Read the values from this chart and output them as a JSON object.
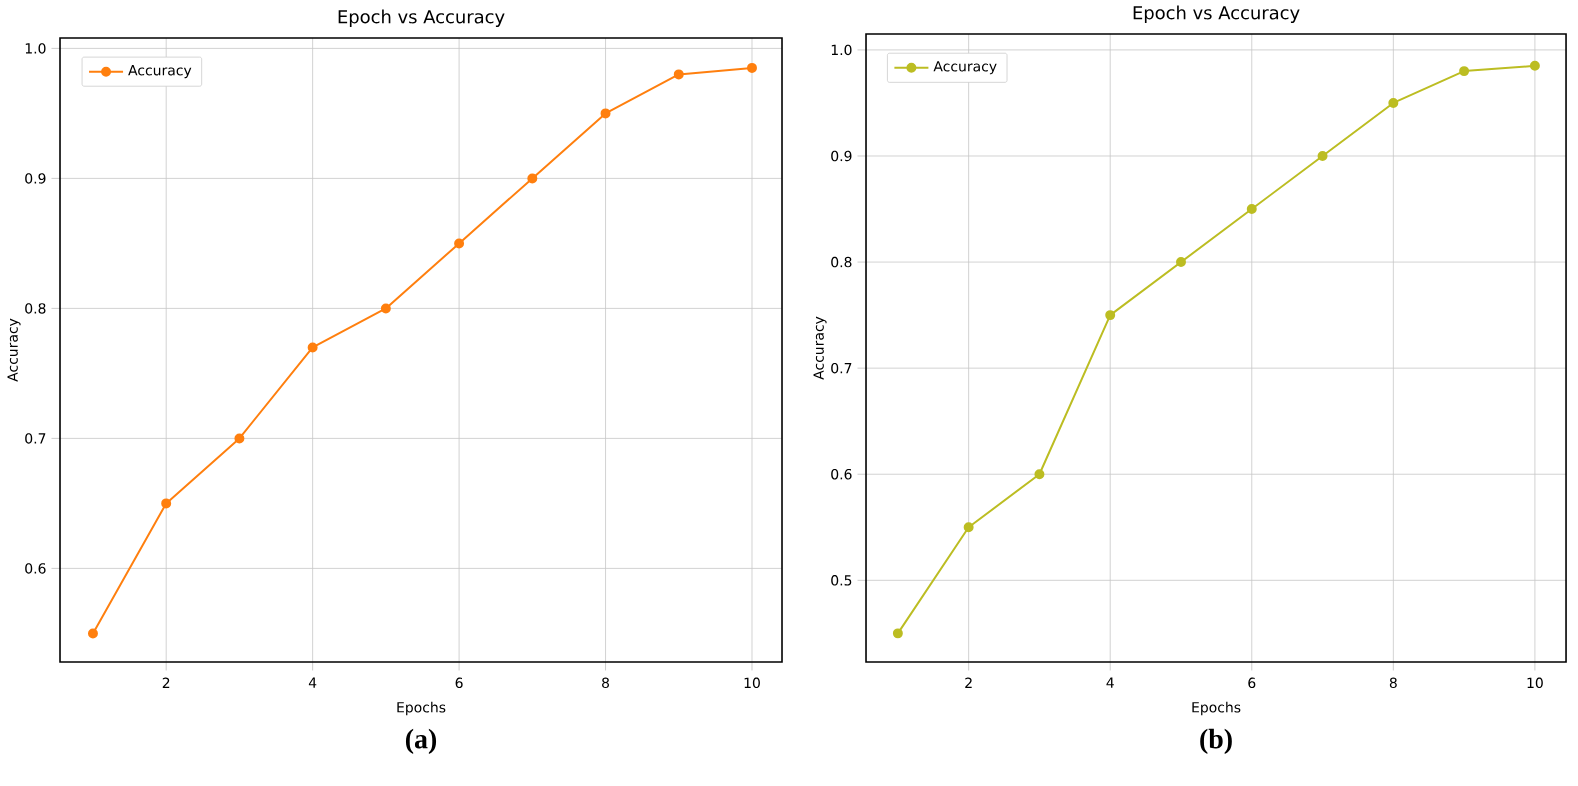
{
  "chart_data": [
    {
      "type": "line",
      "title": "Epoch vs Accuracy",
      "xlabel": "Epochs",
      "ylabel": "Accuracy",
      "x": [
        1,
        2,
        3,
        4,
        5,
        6,
        7,
        8,
        9,
        10
      ],
      "series": [
        {
          "name": "Accuracy",
          "color": "#ff7f0e",
          "values": [
            0.55,
            0.65,
            0.7,
            0.77,
            0.8,
            0.85,
            0.9,
            0.95,
            0.98,
            0.985
          ]
        }
      ],
      "xlim": [
        0.55,
        10.41
      ],
      "ylim": [
        0.528,
        1.008
      ],
      "xticks": [
        2,
        4,
        6,
        8,
        10
      ],
      "yticks": [
        {
          "value": 0.6,
          "label": "0.6"
        },
        {
          "value": 0.7,
          "label": "0.7"
        },
        {
          "value": 0.8,
          "label": "0.8"
        },
        {
          "value": 0.9,
          "label": "0.9"
        },
        {
          "value": 1.0,
          "label": "1.0"
        }
      ],
      "grid": true,
      "legend": "top left",
      "marker": "circle",
      "line_style": "solid",
      "annotations": [
        "(a)"
      ]
    },
    {
      "type": "line",
      "title": "Epoch vs Accuracy",
      "xlabel": "Epochs",
      "ylabel": "Accuracy",
      "x": [
        1,
        2,
        3,
        4,
        5,
        6,
        7,
        8,
        9,
        10
      ],
      "series": [
        {
          "name": "Accuracy",
          "color": "#bcbd22",
          "values": [
            0.45,
            0.55,
            0.6,
            0.75,
            0.8,
            0.85,
            0.9,
            0.95,
            0.98,
            0.985
          ]
        }
      ],
      "xlim": [
        0.55,
        10.44
      ],
      "ylim": [
        0.423,
        1.015
      ],
      "xticks": [
        2,
        4,
        6,
        8,
        10
      ],
      "yticks": [
        {
          "value": 0.5,
          "label": "0.5"
        },
        {
          "value": 0.6,
          "label": "0.6"
        },
        {
          "value": 0.7,
          "label": "0.7"
        },
        {
          "value": 0.8,
          "label": "0.8"
        },
        {
          "value": 0.9,
          "label": "0.9"
        },
        {
          "value": 1.0,
          "label": "1.0"
        }
      ],
      "grid": true,
      "legend": "top left",
      "marker": "circle",
      "line_style": "solid",
      "annotations": [
        "(b)"
      ]
    }
  ]
}
